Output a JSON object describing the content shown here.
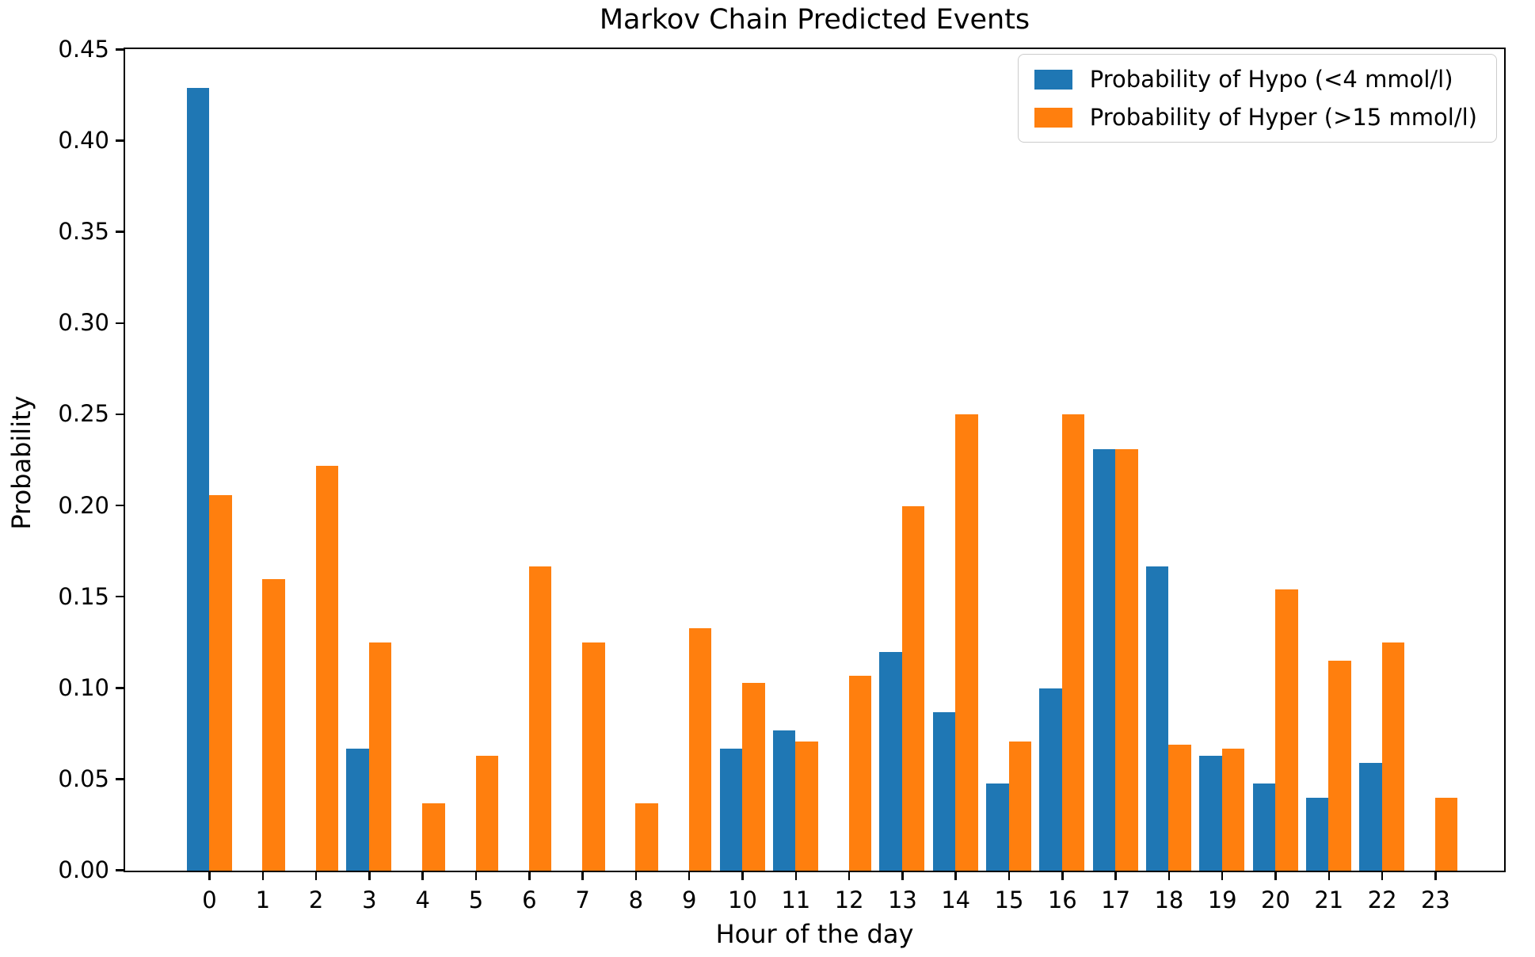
{
  "title": "Markov Chain Predicted Events",
  "axes": {
    "xlabel": "Hour of the day",
    "ylabel": "Probability"
  },
  "legend": {
    "items": [
      {
        "label": "Probability of Hypo (<4 mmol/l)",
        "color": "#1f77b4",
        "icon": "legend-swatch-blue"
      },
      {
        "label": "Probability of Hyper (>15 mmol/l)",
        "color": "#ff7f0e",
        "icon": "legend-swatch-orange"
      }
    ]
  },
  "chart_data": {
    "type": "bar",
    "title": "Markov Chain Predicted Events",
    "xlabel": "Hour of the day",
    "ylabel": "Probability",
    "categories": [
      "0",
      "1",
      "2",
      "3",
      "4",
      "5",
      "6",
      "7",
      "8",
      "9",
      "10",
      "11",
      "12",
      "13",
      "14",
      "15",
      "16",
      "17",
      "18",
      "19",
      "20",
      "21",
      "22",
      "23"
    ],
    "series": [
      {
        "name": "Probability of Hypo (<4 mmol/l)",
        "color": "#1f77b4",
        "values": [
          0.429,
          0,
          0,
          0.067,
          0,
          0,
          0,
          0,
          0,
          0,
          0.067,
          0.077,
          0,
          0.12,
          0.087,
          0.048,
          0.1,
          0.231,
          0.167,
          0.063,
          0.048,
          0.04,
          0.059,
          0
        ]
      },
      {
        "name": "Probability of Hyper (>15 mmol/l)",
        "color": "#ff7f0e",
        "values": [
          0.206,
          0.16,
          0.222,
          0.125,
          0.037,
          0.063,
          0.167,
          0.125,
          0.037,
          0.133,
          0.103,
          0.071,
          0.107,
          0.2,
          0.25,
          0.071,
          0.25,
          0.231,
          0.069,
          0.067,
          0.154,
          0.115,
          0.125,
          0.04
        ]
      }
    ],
    "ylim": [
      0,
      0.45
    ],
    "yticks": [
      0.0,
      0.05,
      0.1,
      0.15,
      0.2,
      0.25,
      0.3,
      0.35,
      0.4,
      0.45
    ],
    "ytick_format_decimals": 2,
    "grid": false,
    "legend_position": "upper right"
  }
}
